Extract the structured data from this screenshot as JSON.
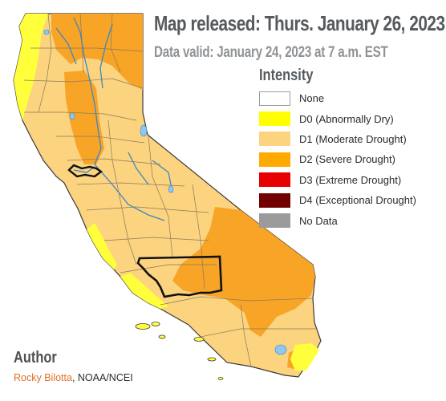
{
  "header": {
    "title": "Map released: Thurs. January 26, 2023",
    "subtitle": "Data valid: January 24, 2023 at 7 a.m. EST"
  },
  "legend": {
    "title": "Intensity",
    "items": [
      {
        "label": "None",
        "color": "#ffffff"
      },
      {
        "label": "D0 (Abnormally Dry)",
        "color": "#ffff00"
      },
      {
        "label": "D1 (Moderate Drought)",
        "color": "#fcd37f"
      },
      {
        "label": "D2 (Severe Drought)",
        "color": "#ffaa00"
      },
      {
        "label": "D3 (Extreme Drought)",
        "color": "#e60000"
      },
      {
        "label": "D4 (Exceptional Drought)",
        "color": "#730000"
      },
      {
        "label": "No Data",
        "color": "#9b9b9b"
      }
    ]
  },
  "credit": {
    "heading": "Author",
    "name": "Rocky Bilotta",
    "affiliation": ", NOAA/NCEI"
  },
  "map": {
    "colors": {
      "d0": "#ffff3c",
      "d1": "#fcd37f",
      "d2": "#f7a427",
      "water": "#8ec8f0",
      "county_lines": "#8a7a5a",
      "highlight_outline": "#111111"
    }
  }
}
